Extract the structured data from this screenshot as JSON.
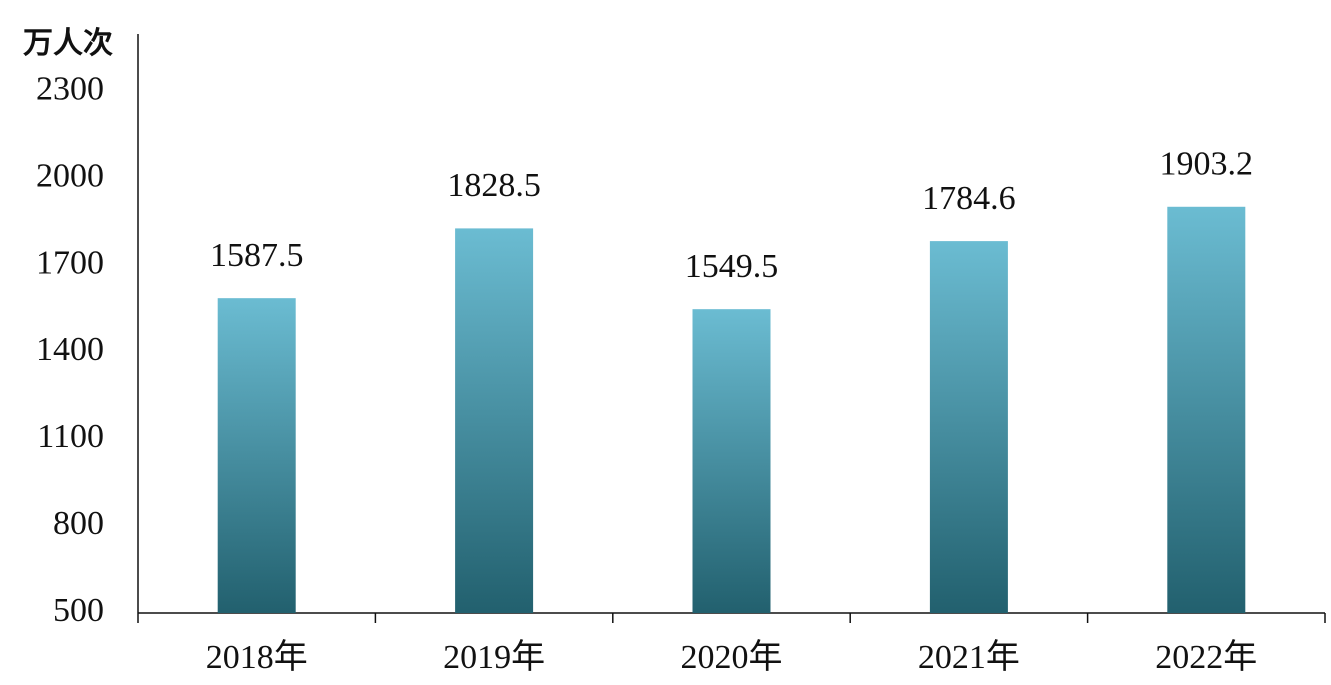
{
  "chart_data": {
    "type": "bar",
    "y_label": "万人次",
    "categories": [
      "2018年",
      "2019年",
      "2020年",
      "2021年",
      "2022年"
    ],
    "values": [
      1587.5,
      1828.5,
      1549.5,
      1784.6,
      1903.2
    ],
    "gradient": [
      "#6bbcd2",
      "#22606e"
    ],
    "ylim": [
      500,
      2500
    ],
    "yticks": [
      500,
      800,
      1100,
      1400,
      1700,
      2000,
      2300
    ],
    "grid": false
  }
}
